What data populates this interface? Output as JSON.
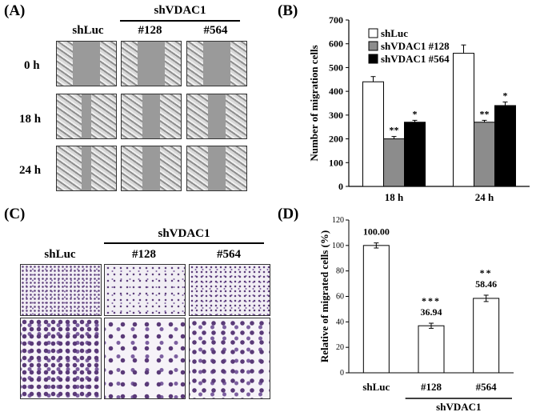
{
  "panel_a": {
    "label": "(A)",
    "group_label": "shVDAC1",
    "columns": [
      "shLuc",
      "#128",
      "#564"
    ],
    "rows": [
      "0 h",
      "18 h",
      "24 h"
    ]
  },
  "panel_c": {
    "label": "(C)",
    "group_label": "shVDAC1",
    "columns": [
      "shLuc",
      "#128",
      "#564"
    ]
  },
  "panel_b": {
    "label": "(B)",
    "chart_data": {
      "type": "bar",
      "categories": [
        "18 h",
        "24 h"
      ],
      "ylabel": "Number of migration cells",
      "ylim": [
        0,
        700
      ],
      "yticks": [
        0,
        100,
        200,
        300,
        400,
        500,
        600,
        700
      ],
      "legend_position": "top-left",
      "series": [
        {
          "name": "shLuc",
          "color": "#ffffff",
          "values": [
            440,
            560
          ],
          "errors": [
            22,
            35
          ],
          "sig": [
            "",
            ""
          ]
        },
        {
          "name": "shVDAC1 #128",
          "color": "#8c8c8c",
          "values": [
            200,
            270
          ],
          "errors": [
            10,
            8
          ],
          "sig": [
            "**",
            "**"
          ]
        },
        {
          "name": "shVDAC1 #564",
          "color": "#000000",
          "values": [
            270,
            340
          ],
          "errors": [
            8,
            15
          ],
          "sig": [
            "*",
            "*"
          ]
        }
      ]
    }
  },
  "panel_d": {
    "label": "(D)",
    "chart_data": {
      "type": "bar",
      "categories": [
        "shLuc",
        "#128",
        "#564"
      ],
      "group_label": "shVDAC1",
      "ylabel": "Relative of migrated cells (%)",
      "ylim": [
        0,
        120
      ],
      "yticks": [
        0,
        20,
        40,
        60,
        80,
        100,
        120
      ],
      "series": [
        {
          "values": [
            100.0,
            36.94,
            58.46
          ],
          "errors": [
            2,
            2,
            2.5
          ],
          "value_labels": [
            "100.00",
            "36.94",
            "58.46"
          ],
          "sig": [
            "",
            "***",
            "**"
          ],
          "color": "#ffffff"
        }
      ]
    }
  }
}
